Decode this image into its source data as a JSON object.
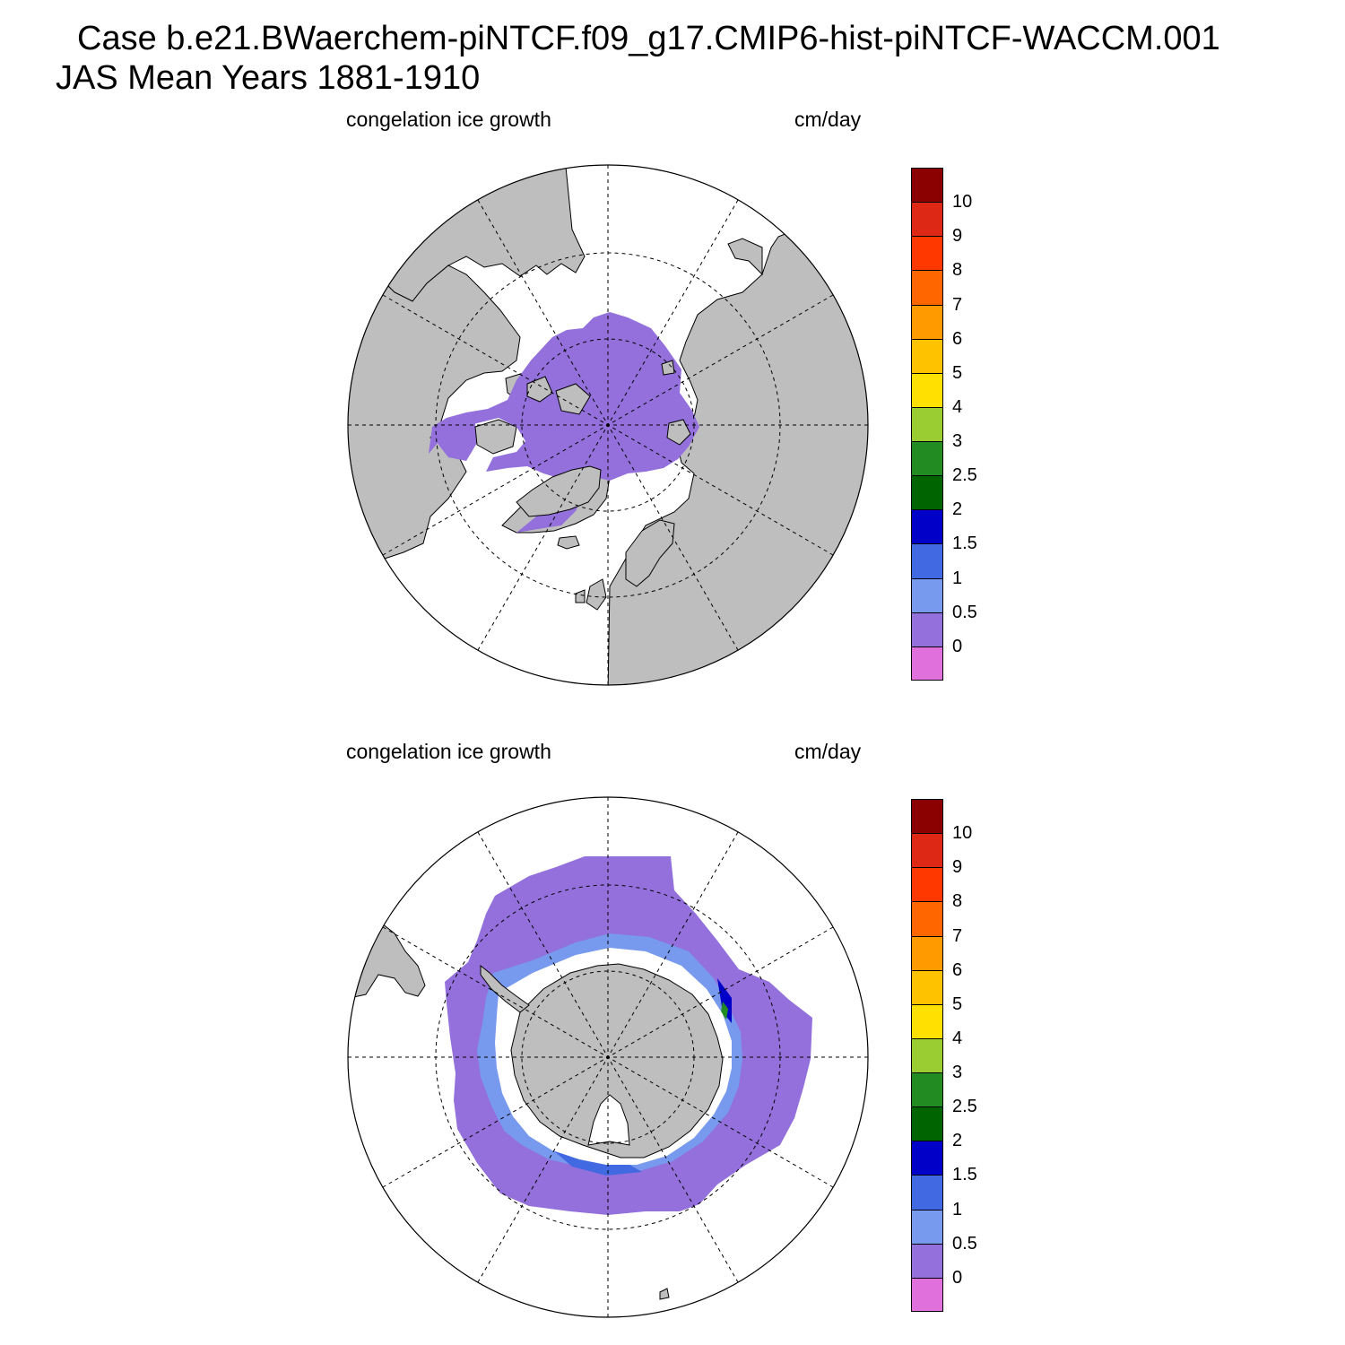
{
  "title": {
    "line1": "Case b.e21.BWaerchem-piNTCF.f09_g17.CMIP6-hist-piNTCF-WACCM.001",
    "line2": "JAS Mean   Years 1881-1910"
  },
  "colors": {
    "land": "#bebebe",
    "ocean": "#ffffff",
    "coast": "#000000",
    "grid": "#000000"
  },
  "colorbar": {
    "levels": [
      "0",
      "0.5",
      "1",
      "1.5",
      "2",
      "2.5",
      "3",
      "4",
      "5",
      "6",
      "7",
      "8",
      "9",
      "10"
    ],
    "colors": [
      "#e070dc",
      "#9370db",
      "#7799ee",
      "#4169e1",
      "#0000c8",
      "#006400",
      "#228b22",
      "#9acd32",
      "#ffe000",
      "#ffc200",
      "#ff9a00",
      "#ff6600",
      "#ff3800",
      "#dc2814",
      "#8b0000"
    ]
  },
  "panels": [
    {
      "id": "north",
      "left_label": "congelation ice growth",
      "right_label": "cm/day",
      "hemisphere": "Northern Hemisphere polar stereographic",
      "dominant_value_bin": "0 - 0.5",
      "dominant_color": "#9370db"
    },
    {
      "id": "south",
      "left_label": "congelation ice growth",
      "right_label": "cm/day",
      "hemisphere": "Southern Hemisphere polar stereographic",
      "dominant_value_bin": "0 - 0.5",
      "dominant_color": "#9370db"
    }
  ]
}
